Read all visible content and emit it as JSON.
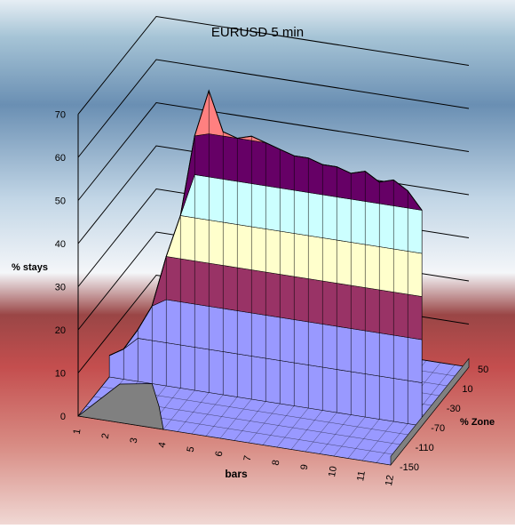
{
  "chart_data": {
    "type": "surface",
    "title": "EURUSD 5 min",
    "xlabel": "bars",
    "ylabel": "% stays",
    "zlabel": "% Zone",
    "x_ticks": [
      "1",
      "2",
      "3",
      "4",
      "5",
      "6",
      "7",
      "8",
      "9",
      "10",
      "11",
      "12"
    ],
    "y_ticks": [
      "0",
      "10",
      "20",
      "30",
      "40",
      "50",
      "60",
      "70"
    ],
    "z_ticks": [
      "50",
      "10",
      "-30",
      "-70",
      "-110",
      "-150"
    ],
    "ylim": [
      0,
      70
    ],
    "z_values": [
      50,
      10,
      -30,
      -70,
      -110,
      -150
    ],
    "profile_x": [
      1,
      1.5,
      2,
      2.5,
      3,
      3.5,
      4,
      4.5,
      5,
      5.5,
      6,
      6.5,
      7,
      7.5,
      8,
      8.5,
      9,
      9.5,
      10,
      10.5,
      11,
      11.5,
      12
    ],
    "profile_y": [
      5,
      7,
      12,
      18,
      30,
      40,
      59,
      70,
      61,
      60,
      61,
      60,
      59,
      58,
      58,
      57,
      57,
      56,
      57,
      55,
      56,
      54,
      50
    ],
    "bands": [
      {
        "from": 0,
        "to": 10,
        "color": "#9999ff"
      },
      {
        "from": 10,
        "to": 20,
        "color": "#9999ff"
      },
      {
        "from": 20,
        "to": 30,
        "color": "#993366"
      },
      {
        "from": 30,
        "to": 40,
        "color": "#ffffcc"
      },
      {
        "from": 40,
        "to": 50,
        "color": "#ccffff"
      },
      {
        "from": 50,
        "to": 60,
        "color": "#660066"
      },
      {
        "from": 60,
        "to": 70,
        "color": "#ff8080"
      },
      {
        "from": 70,
        "to": 80,
        "color": "#0066cc"
      }
    ],
    "floor_color": "#9999ff",
    "base_color": "#808080",
    "grid": true,
    "legend": "none"
  }
}
